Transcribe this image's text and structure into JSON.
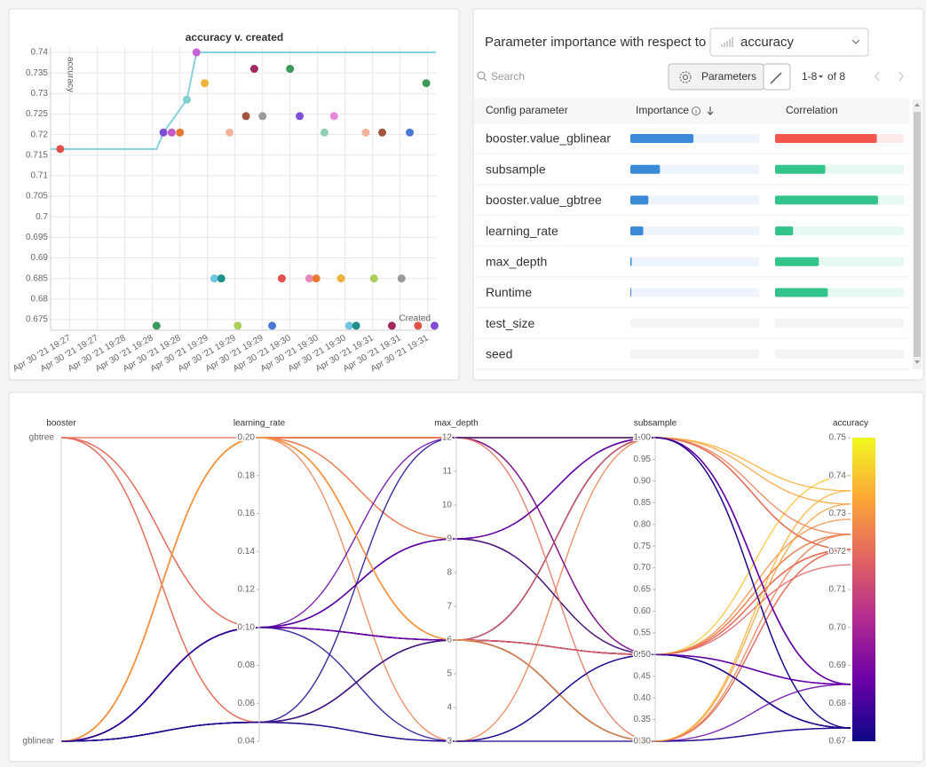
{
  "chart_data": [
    {
      "type": "scatter",
      "title": "accuracy v. created",
      "y_label": "accuracy",
      "x_label": "Created",
      "grid": true,
      "x": [
        13,
        83,
        88,
        94,
        100,
        105,
        112,
        118,
        125,
        130,
        136,
        142,
        148,
        154,
        160,
        167,
        174,
        180,
        187,
        194,
        199,
        205,
        212,
        217,
        223,
        228,
        235,
        241,
        247,
        254,
        261,
        267,
        273,
        279,
        285
      ],
      "values": [
        0.7165,
        0.6735,
        0.7205,
        0.7205,
        0.7205,
        0.7285,
        0.74,
        0.7325,
        0.685,
        0.685,
        0.7205,
        0.6735,
        0.7245,
        0.736,
        0.7245,
        0.6735,
        0.685,
        0.736,
        0.7245,
        0.685,
        0.685,
        0.7205,
        0.7245,
        0.685,
        0.6735,
        0.6735,
        0.7205,
        0.685,
        0.7205,
        0.6735,
        0.685,
        0.7205,
        0.6735,
        0.7325,
        0.6735
      ],
      "colors": [
        "#e0524a",
        "#3b9a5a",
        "#7e4fd6",
        "#c45ac8",
        "#e5792f",
        "#7fd2c9",
        "#c562d6",
        "#f0b23c",
        "#6fc4e0",
        "#1f8f8a",
        "#f3b39b",
        "#a9cf5a",
        "#a0553c",
        "#a32a5f",
        "#9a9a9a",
        "#4a78d4",
        "#e0524a",
        "#3b9a5a",
        "#7e4fd6",
        "#e887b9",
        "#e5792f",
        "#8ed0b0",
        "#e887d9",
        "#f0b23c",
        "#6fc4e0",
        "#1f8f8a",
        "#f3b39b",
        "#a9cf5a",
        "#a0553c",
        "#a32a5f",
        "#9a9a9a",
        "#4a78d4",
        "#e0524a",
        "#3b9a5a",
        "#7e4fd6"
      ],
      "line": {
        "color": "#87d0de",
        "x": [
          6,
          83,
          88,
          105,
          112,
          286
        ],
        "values": [
          0.7165,
          0.7165,
          0.7205,
          0.7285,
          0.74,
          0.74
        ]
      },
      "xlim": [
        6,
        286
      ],
      "ylim": [
        0.6724,
        0.7413
      ],
      "xticks": [
        {
          "value": 20,
          "label": "Apr 30 '21 19:27"
        },
        {
          "value": 40,
          "label": "Apr 30 '21 19:27"
        },
        {
          "value": 60,
          "label": "Apr 30 '21 19:28"
        },
        {
          "value": 80,
          "label": "Apr 30 '21 19:28"
        },
        {
          "value": 100,
          "label": "Apr 30 '21 19:28"
        },
        {
          "value": 120,
          "label": "Apr 30 '21 19:29"
        },
        {
          "value": 140,
          "label": "Apr 30 '21 19:29"
        },
        {
          "value": 160,
          "label": "Apr 30 '21 19:29"
        },
        {
          "value": 180,
          "label": "Apr 30 '21 19:30"
        },
        {
          "value": 200,
          "label": "Apr 30 '21 19:30"
        },
        {
          "value": 220,
          "label": "Apr 30 '21 19:30"
        },
        {
          "value": 240,
          "label": "Apr 30 '21 19:31"
        },
        {
          "value": 260,
          "label": "Apr 30 '21 19:31"
        },
        {
          "value": 280,
          "label": "Apr 30 '21 19:31"
        }
      ],
      "yticks": [
        0.675,
        0.68,
        0.685,
        0.69,
        0.695,
        0.7,
        0.705,
        0.71,
        0.715,
        0.72,
        0.725,
        0.73,
        0.735,
        0.74
      ]
    },
    {
      "type": "parallel",
      "colorscale": [
        "#0d0887",
        "#6a00a8",
        "#b12a90",
        "#e16462",
        "#fca636",
        "#f0f921"
      ],
      "dimensions": [
        {
          "label": "booster",
          "categories": [
            "gbtree",
            "gblinear"
          ],
          "values": [
            "gbtree",
            "gblinear",
            "gblinear",
            "gblinear",
            "gbtree",
            "gblinear",
            "gblinear",
            "gblinear",
            "gblinear",
            "gblinear",
            "gbtree",
            "gblinear",
            "gblinear",
            "gblinear",
            "gblinear",
            "gblinear",
            "gblinear",
            "gblinear",
            "gblinear",
            "gblinear",
            "gblinear",
            "gblinear",
            "gblinear",
            "gblinear",
            "gblinear",
            "gblinear",
            "gbtree",
            "gblinear",
            "gbtree",
            "gblinear",
            "gblinear",
            "gblinear",
            "gblinear",
            "gblinear",
            "gblinear"
          ]
        },
        {
          "label": "learning_rate",
          "lim": [
            0.04,
            0.2
          ],
          "ticks": [
            0.04,
            0.06,
            0.08,
            {
              "value": 0.1,
              "label": "0.10"
            },
            0.12,
            0.14,
            0.16,
            0.18,
            {
              "value": 0.2,
              "label": "0.20"
            }
          ],
          "values": [
            0.1,
            0.05,
            0.2,
            0.2,
            0.1,
            0.2,
            0.2,
            0.2,
            0.1,
            0.1,
            0.05,
            0.05,
            0.2,
            0.2,
            0.2,
            0.05,
            0.1,
            0.2,
            0.2,
            0.1,
            0.1,
            0.2,
            0.2,
            0.1,
            0.05,
            0.1,
            0.2,
            0.1,
            0.05,
            0.05,
            0.1,
            0.2,
            0.05,
            0.2,
            0.1
          ]
        },
        {
          "label": "max_depth",
          "lim": [
            3,
            12
          ],
          "ticks": [
            3,
            4,
            5,
            6,
            7,
            8,
            9,
            10,
            11,
            12
          ],
          "values": [
            6,
            3,
            12,
            9,
            6,
            12,
            6,
            12,
            6,
            9,
            6,
            6,
            6,
            12,
            9,
            3,
            6,
            6,
            12,
            9,
            6,
            6,
            3,
            12,
            6,
            9,
            12,
            6,
            6,
            6,
            9,
            6,
            12,
            6,
            3
          ]
        },
        {
          "label": "subsample",
          "lim": [
            0.3,
            1
          ],
          "ticks": [
            {
              "value": 0.3,
              "label": "0.30"
            },
            0.35,
            {
              "value": 0.4,
              "label": "0.40"
            },
            0.45,
            {
              "value": 0.5,
              "label": "0.50"
            },
            0.55,
            {
              "value": 0.6,
              "label": "0.60"
            },
            0.65,
            {
              "value": 0.7,
              "label": "0.70"
            },
            0.75,
            {
              "value": 0.8,
              "label": "0.80"
            },
            0.85,
            {
              "value": 0.9,
              "label": "0.90"
            },
            0.95,
            {
              "value": 1,
              "label": "1.00"
            }
          ],
          "values": [
            0.5,
            0.3,
            1,
            0.5,
            1,
            0.5,
            0.5,
            1,
            0.5,
            1,
            0.3,
            0.5,
            0.3,
            1,
            0.5,
            0.5,
            1,
            0.3,
            0.5,
            1,
            0.3,
            0.5,
            1,
            0.5,
            1,
            0.5,
            0.3,
            0.5,
            1,
            0.3,
            1,
            0.5,
            1,
            0.3,
            0.5
          ]
        },
        {
          "label": "accuracy",
          "lim": [
            0.67,
            0.75
          ],
          "ticks": [
            0.67,
            0.68,
            0.69,
            {
              "value": 0.7,
              "label": "0.70"
            },
            0.71,
            0.72,
            0.73,
            0.74,
            0.75
          ],
          "values": [
            0.7165,
            0.6735,
            0.7205,
            0.7205,
            0.7205,
            0.7285,
            0.74,
            0.7325,
            0.685,
            0.685,
            0.7205,
            0.6735,
            0.7245,
            0.736,
            0.7245,
            0.6735,
            0.685,
            0.736,
            0.7245,
            0.685,
            0.685,
            0.7205,
            0.7245,
            0.685,
            0.6735,
            0.6735,
            0.7205,
            0.685,
            0.7205,
            0.6735,
            0.685,
            0.7205,
            0.6735,
            0.7325,
            0.6735
          ]
        }
      ]
    }
  ],
  "importance_panel": {
    "title": "Parameter importance with respect to",
    "metric": "accuracy",
    "search_placeholder": "Search",
    "button": "Parameters",
    "page_range": "1-8",
    "page_total": "of 8",
    "columns": [
      "Config parameter",
      "Importance",
      "Correlation"
    ],
    "rows": [
      {
        "parameter": "booster.value_gblinear",
        "importance": 0.49,
        "correlation": -0.79
      },
      {
        "parameter": "subsample",
        "importance": 0.23,
        "correlation": 0.39
      },
      {
        "parameter": "booster.value_gbtree",
        "importance": 0.14,
        "correlation": 0.8
      },
      {
        "parameter": "learning_rate",
        "importance": 0.1,
        "correlation": 0.14
      },
      {
        "parameter": "max_depth",
        "importance": 0.01,
        "correlation": 0.34
      },
      {
        "parameter": "Runtime",
        "importance": 0.005,
        "correlation": 0.41
      },
      {
        "parameter": "test_size",
        "importance": null,
        "correlation": null
      },
      {
        "parameter": "seed",
        "importance": null,
        "correlation": null
      }
    ]
  }
}
